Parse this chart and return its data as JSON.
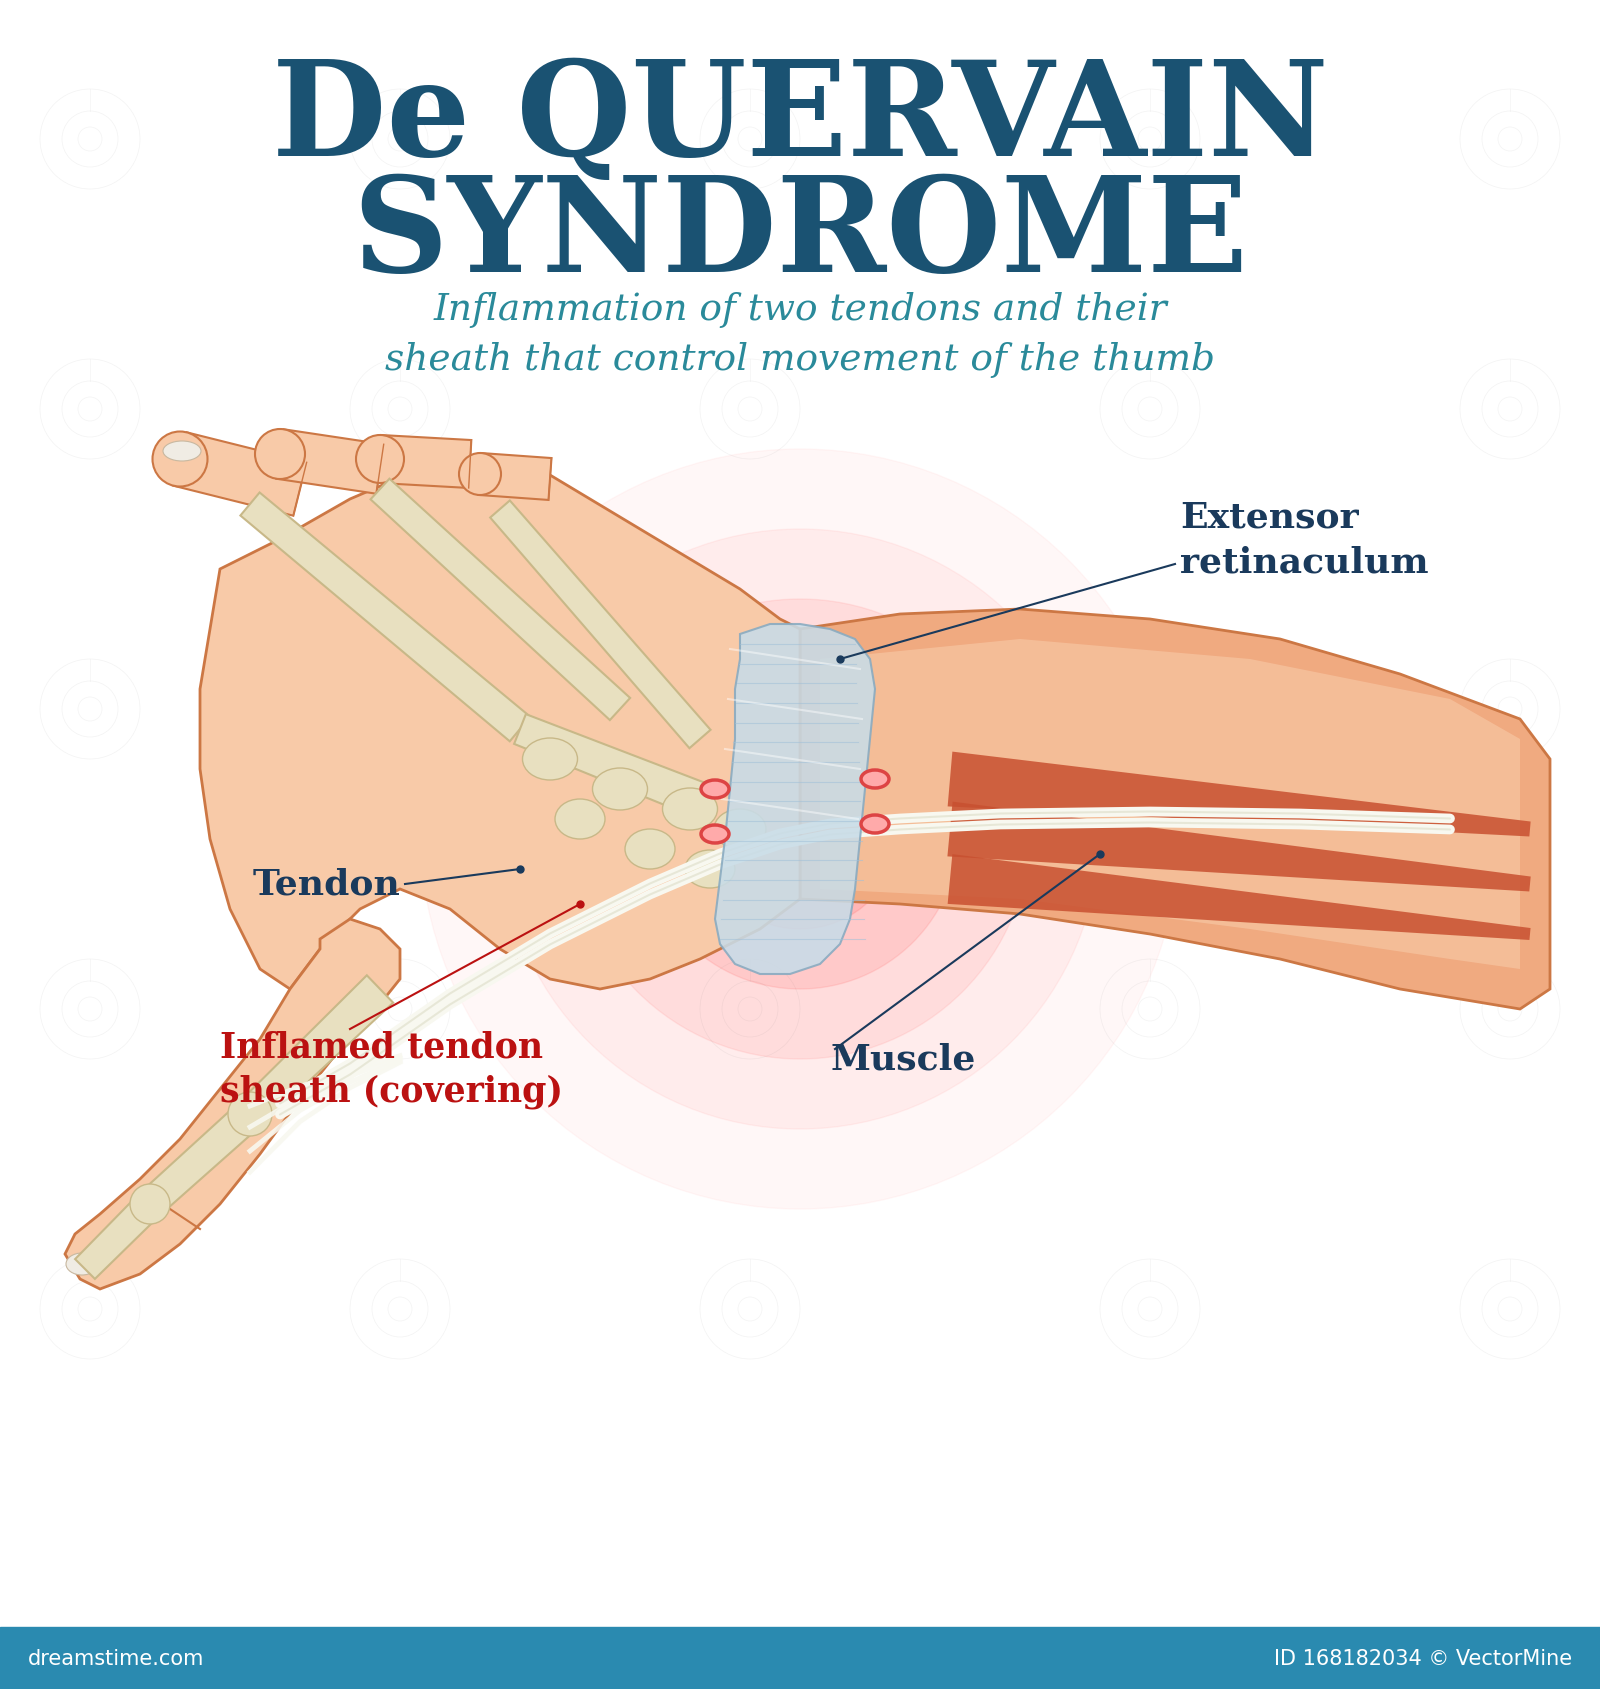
{
  "title_line1": "De QUERVAIN",
  "title_line2": "SYNDROME",
  "subtitle": "Inflammation of two tendons and their\nsheath that control movement of the thumb",
  "title_color": "#1a5272",
  "subtitle_color": "#2a8a9a",
  "label_tendon": "Tendon",
  "label_inflamed": "Inflamed tendon\nsheath (covering)",
  "label_muscle": "Muscle",
  "label_extensor": "Extensor\nretinaculum",
  "label_tendon_color": "#1a3a5c",
  "label_inflamed_color": "#bb1111",
  "label_muscle_color": "#1a3a5c",
  "label_extensor_color": "#1a3a5c",
  "footer_bg": "#2a8ab0",
  "footer_text_left": "dreamstime.com",
  "footer_text_right": "ID 168182034 © VectorMine",
  "bg_color": "#ffffff",
  "skin_light": "#f8caa8",
  "skin_medium": "#f0aa80",
  "skin_dark": "#e08858",
  "skin_outline": "#cc7744",
  "bone_color": "#e8e0c0",
  "bone_outline": "#c8b888",
  "tendon_white": "#f8f8f0",
  "tendon_outline": "#d8d8c0",
  "muscle_dark": "#c85030",
  "muscle_light": "#e87858",
  "inflammation_red": "#dd4444",
  "retinaculum_color": "#c8dce8",
  "retinaculum_outline": "#88aac0",
  "line_color": "#1a3a5c",
  "glow_color": "#ff4444"
}
